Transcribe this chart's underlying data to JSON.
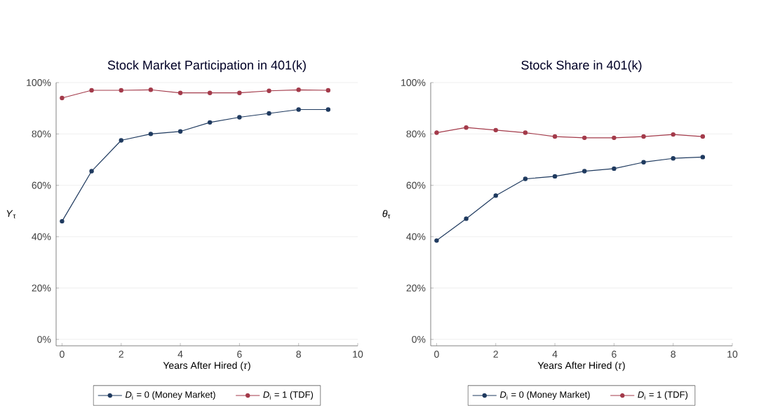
{
  "chart_data": [
    {
      "type": "line",
      "title": "Stock Market Participation in 401(k)",
      "xlabel": "Years After Hired (*τ*)",
      "ylabel": "*Y*$_{τ}$",
      "x": [
        0,
        1,
        2,
        3,
        4,
        5,
        6,
        7,
        8,
        9
      ],
      "series": [
        {
          "name": "*D*$_{i}$ = 0 (Money Market)",
          "color": "#1f3a5f",
          "values": [
            46,
            65.5,
            77.5,
            80,
            81,
            84.5,
            86.5,
            88,
            89.5,
            89.5
          ]
        },
        {
          "name": "*D*$_{i}$ = 1 (TDF)",
          "color": "#a33a4a",
          "values": [
            94,
            97,
            97,
            97.2,
            96,
            96,
            96,
            96.8,
            97.2,
            97
          ]
        }
      ],
      "xlim": [
        -0.2,
        10
      ],
      "xticks": [
        0,
        2,
        4,
        6,
        8,
        10
      ],
      "ylim": [
        -2.5,
        100
      ],
      "yticks": [
        {
          "value": 0,
          "label": "0%"
        },
        {
          "value": 20,
          "label": "20%"
        },
        {
          "value": 40,
          "label": "40%"
        },
        {
          "value": 60,
          "label": "60%"
        },
        {
          "value": 80,
          "label": "80%"
        },
        {
          "value": 100,
          "label": "100%"
        }
      ],
      "grid": "y",
      "legend": "bottom",
      "marker": "circle",
      "line_style": "solid"
    },
    {
      "type": "line",
      "title": "Stock Share in 401(k)",
      "xlabel": "Years After Hired (*τ*)",
      "ylabel": "*θ*$_{τ}$",
      "x": [
        0,
        1,
        2,
        3,
        4,
        5,
        6,
        7,
        8,
        9
      ],
      "series": [
        {
          "name": "*D*$_{i}$ = 0 (Money Market)",
          "color": "#1f3a5f",
          "values": [
            38.5,
            47,
            56,
            62.5,
            63.5,
            65.5,
            66.5,
            69,
            70.5,
            71
          ]
        },
        {
          "name": "*D*$_{i}$ = 1 (TDF)",
          "color": "#a33a4a",
          "values": [
            80.5,
            82.5,
            81.5,
            80.5,
            79,
            78.5,
            78.5,
            79,
            79.8,
            79
          ]
        }
      ],
      "xlim": [
        -0.2,
        10
      ],
      "xticks": [
        0,
        2,
        4,
        6,
        8,
        10
      ],
      "ylim": [
        -2.5,
        100
      ],
      "yticks": [
        {
          "value": 0,
          "label": "0%"
        },
        {
          "value": 20,
          "label": "20%"
        },
        {
          "value": 40,
          "label": "40%"
        },
        {
          "value": 60,
          "label": "60%"
        },
        {
          "value": 80,
          "label": "80%"
        },
        {
          "value": 100,
          "label": "100%"
        }
      ],
      "grid": "y",
      "legend": "bottom",
      "marker": "circle",
      "line_style": "solid"
    }
  ]
}
